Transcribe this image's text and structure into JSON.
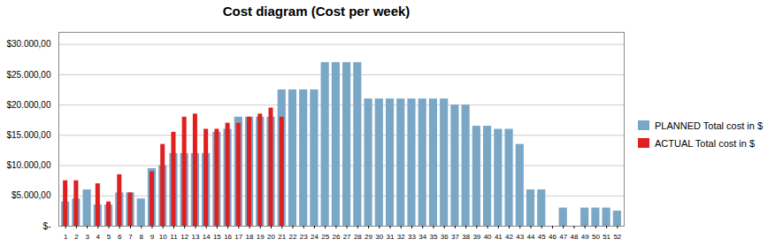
{
  "chart_data": {
    "type": "bar",
    "title": "Cost diagram (Cost per week)",
    "categories": [
      1,
      2,
      3,
      4,
      5,
      6,
      7,
      8,
      9,
      10,
      11,
      12,
      13,
      14,
      15,
      16,
      17,
      18,
      19,
      20,
      21,
      22,
      23,
      24,
      25,
      26,
      27,
      28,
      29,
      30,
      31,
      32,
      33,
      34,
      35,
      36,
      37,
      38,
      39,
      40,
      41,
      42,
      43,
      44,
      45,
      46,
      47,
      48,
      49,
      50,
      51,
      52
    ],
    "series": [
      {
        "name": "PLANNED Total cost in $",
        "color": "#7BA7C7",
        "values": [
          4000,
          4500,
          6000,
          3500,
          3500,
          5500,
          5500,
          4500,
          9500,
          10000,
          12000,
          12000,
          12000,
          12000,
          15500,
          16000,
          18000,
          18000,
          18000,
          18000,
          22500,
          22500,
          22500,
          22500,
          27000,
          27000,
          27000,
          27000,
          21000,
          21000,
          21000,
          21000,
          21000,
          21000,
          21000,
          21000,
          20000,
          20000,
          16500,
          16500,
          16000,
          16000,
          13500,
          6000,
          6000,
          0,
          3000,
          0,
          3000,
          3000,
          3000,
          2500
        ]
      },
      {
        "name": "ACTUAL Total cost in $",
        "color": "#E02020",
        "values": [
          7500,
          7500,
          0,
          7000,
          4000,
          8500,
          5500,
          0,
          9000,
          13500,
          15500,
          18000,
          18500,
          16000,
          16000,
          17000,
          17000,
          18000,
          18500,
          19500,
          18000,
          0,
          0,
          0,
          0,
          0,
          0,
          0,
          0,
          0,
          0,
          0,
          0,
          0,
          0,
          0,
          0,
          0,
          0,
          0,
          0,
          0,
          0,
          0,
          0,
          0,
          0,
          0,
          0,
          0,
          0,
          0
        ]
      }
    ],
    "ylim": [
      0,
      32000
    ],
    "yticks": [
      {
        "value": 0,
        "label": "$-"
      },
      {
        "value": 5000,
        "label": "$5.000,00"
      },
      {
        "value": 10000,
        "label": "$10.000,00"
      },
      {
        "value": 15000,
        "label": "$15.000,00"
      },
      {
        "value": 20000,
        "label": "$20.000,00"
      },
      {
        "value": 25000,
        "label": "$25.000,00"
      },
      {
        "value": 30000,
        "label": "$30.000,00"
      }
    ],
    "grid": true,
    "legend": "right"
  }
}
